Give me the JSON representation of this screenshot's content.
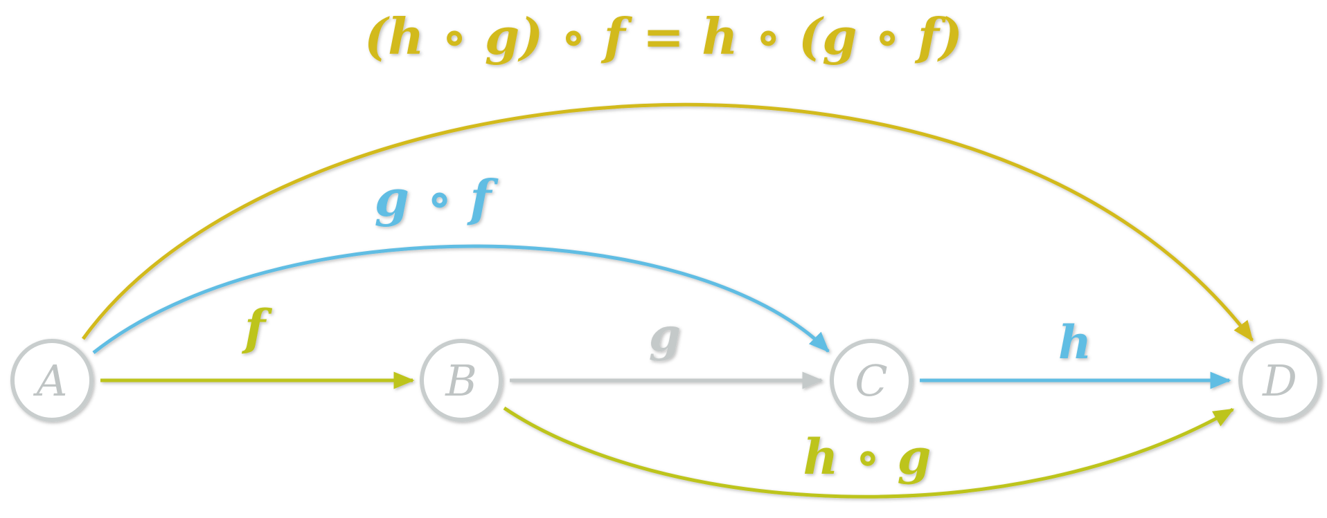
{
  "title": "(h ∘ g) ∘ f = h ∘ (g ∘ f)",
  "nodes": {
    "a": "A",
    "b": "B",
    "c": "C",
    "d": "D"
  },
  "edges": {
    "f": "f",
    "g": "g",
    "h": "h",
    "g_after_f": "g ∘ f",
    "h_after_g": "h ∘ g"
  },
  "colors": {
    "gold": "#D2BA1E",
    "olive": "#BDC41A",
    "blue": "#61BDE3",
    "gray": "#C4C9C9",
    "node_stroke": "#C8CDCD",
    "node_text": "#BFC4C4"
  }
}
